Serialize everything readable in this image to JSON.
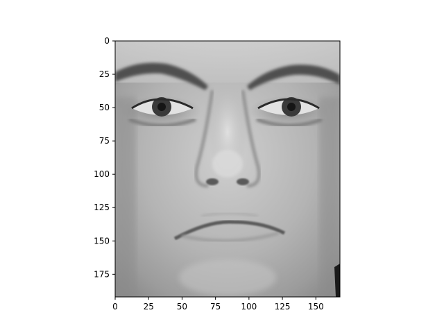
{
  "chart_data": {
    "type": "heatmap",
    "title": "",
    "xlabel": "",
    "ylabel": "",
    "xlim": [
      0,
      168
    ],
    "ylim": [
      192,
      0
    ],
    "x_ticks": [
      0,
      25,
      50,
      75,
      100,
      125,
      150
    ],
    "y_ticks": [
      0,
      25,
      50,
      75,
      100,
      125,
      150,
      175
    ],
    "colormap": "gray",
    "image_content": "grayscale-face-photo",
    "grid": false,
    "legend": "none"
  }
}
